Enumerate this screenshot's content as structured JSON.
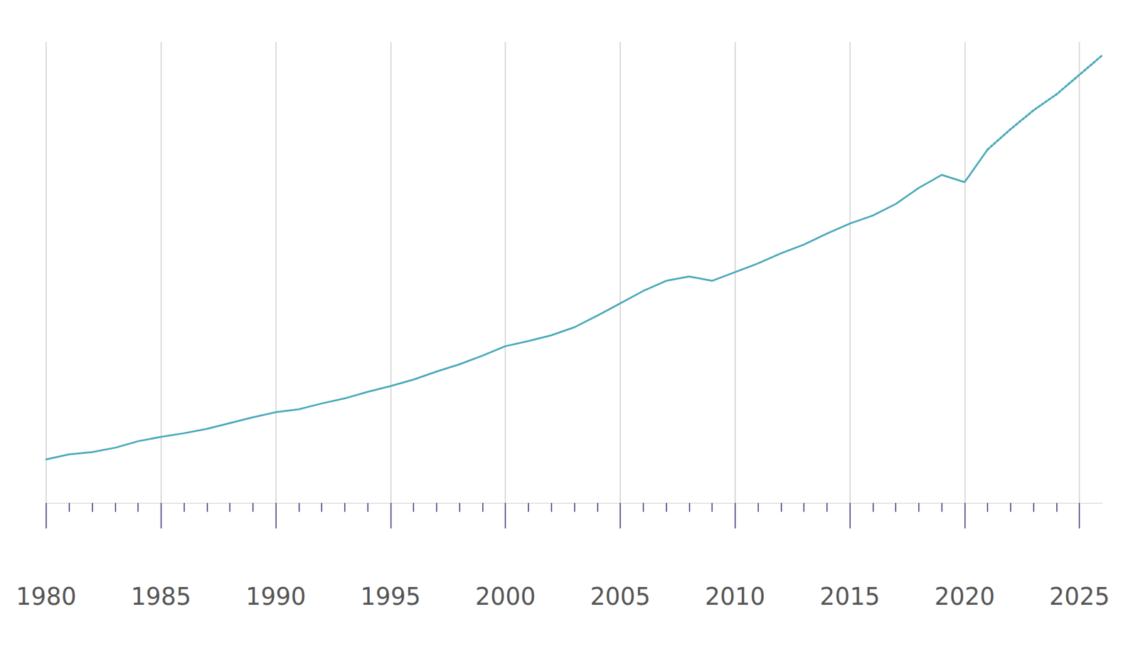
{
  "chart_data": {
    "type": "line",
    "x": [
      1980,
      1981,
      1982,
      1983,
      1984,
      1985,
      1986,
      1987,
      1988,
      1989,
      1990,
      1991,
      1992,
      1993,
      1994,
      1995,
      1996,
      1997,
      1998,
      1999,
      2000,
      2001,
      2002,
      2003,
      2004,
      2005,
      2006,
      2007,
      2008,
      2009,
      2010,
      2011,
      2012,
      2013,
      2014,
      2015,
      2016,
      2017,
      2018,
      2019,
      2020,
      2021,
      2022,
      2023,
      2024,
      2025,
      2026
    ],
    "series": [
      {
        "color": "#4aa9b9",
        "line_style": "solid",
        "values": [
          12,
          13.4,
          14,
          15.2,
          17,
          18.2,
          19.2,
          20.4,
          22,
          23.6,
          25,
          25.8,
          27.4,
          28.8,
          30.6,
          32.2,
          34,
          36.2,
          38.2,
          40.6,
          43.2,
          44.6,
          46.2,
          48.4,
          51.6,
          55,
          58.4,
          61.2,
          62.4,
          61.2,
          63.6,
          66,
          68.8,
          71.2,
          74.2,
          77,
          79.2,
          82.4,
          86.8,
          90.4,
          88.4,
          97.4,
          null,
          null,
          null,
          null,
          null
        ]
      },
      {
        "color": "#4aa9b9",
        "line_style": "dotted",
        "values": [
          null,
          null,
          null,
          null,
          null,
          null,
          null,
          null,
          null,
          null,
          null,
          null,
          null,
          null,
          null,
          null,
          null,
          null,
          null,
          null,
          null,
          null,
          null,
          null,
          null,
          null,
          null,
          null,
          null,
          null,
          null,
          null,
          null,
          null,
          null,
          null,
          null,
          null,
          null,
          null,
          null,
          97.4,
          103,
          108.2,
          112.6,
          118,
          123.4
        ]
      }
    ],
    "xlim": [
      1980,
      2026
    ],
    "xticks": [
      1980,
      1985,
      1990,
      1995,
      2000,
      2005,
      2010,
      2015,
      2020,
      2025
    ],
    "ylim": [
      0,
      127
    ],
    "grid": true,
    "tick_labels": "x"
  }
}
